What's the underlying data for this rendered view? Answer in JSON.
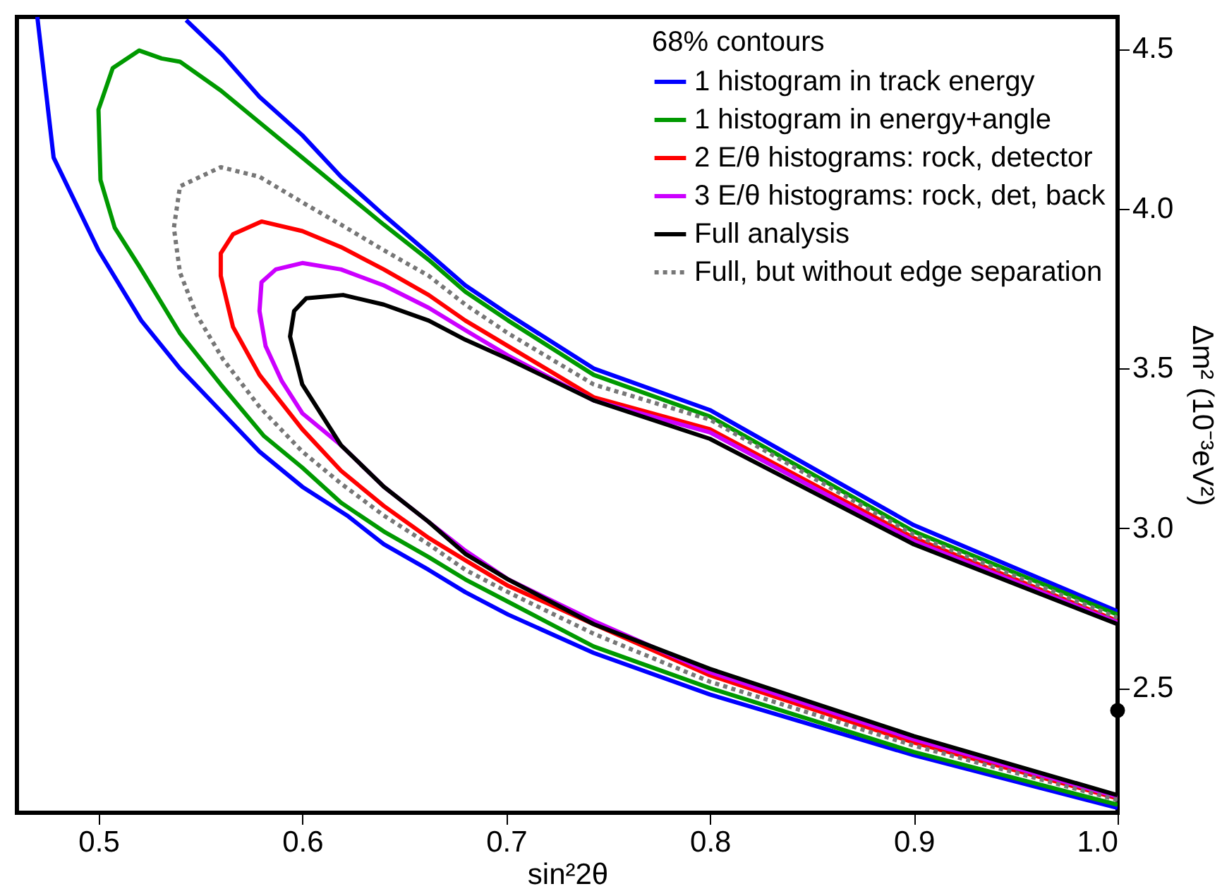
{
  "chart_data": {
    "type": "line",
    "xlabel": "sin²2θ",
    "ylabel": "Δm² (10⁻³eV²)",
    "legend_title": "68% contours",
    "legend": "top right",
    "xlim": [
      0.46,
      1.0
    ],
    "ylim": [
      2.11,
      4.6
    ],
    "xticks": [
      0.5,
      0.6,
      0.7,
      0.8,
      0.9,
      {
        "value": 1,
        "label": "1.0"
      }
    ],
    "yticks": [
      2.5,
      {
        "value": 3,
        "label": "3.0"
      },
      3.5,
      {
        "value": 4,
        "label": "4.0"
      },
      4.5
    ],
    "series": [
      {
        "name": "1 histogram in track energy",
        "color": "#0000ff",
        "line_style": "solid",
        "x": [
          1.0,
          0.9,
          0.8,
          0.743,
          0.701,
          0.68,
          0.662,
          0.64,
          0.622,
          0.6,
          0.579,
          0.561,
          0.54,
          0.521,
          0.5,
          0.478,
          0.47,
          null,
          0.543,
          0.561,
          0.579,
          0.6,
          0.619,
          0.64,
          0.662,
          0.68,
          0.701,
          0.743,
          0.8,
          0.9,
          1.0
        ],
        "values": [
          2.125,
          2.29,
          2.48,
          2.61,
          2.73,
          2.8,
          2.87,
          2.95,
          3.04,
          3.13,
          3.24,
          3.36,
          3.5,
          3.65,
          3.87,
          4.16,
          4.6,
          null,
          4.59,
          4.48,
          4.35,
          4.23,
          4.1,
          3.98,
          3.86,
          3.76,
          3.67,
          3.5,
          3.37,
          3.01,
          2.74
        ]
      },
      {
        "name": "1 histogram in energy+angle",
        "color": "#009900",
        "line_style": "solid",
        "x": [
          1.0,
          0.9,
          0.8,
          0.743,
          0.701,
          0.68,
          0.662,
          0.64,
          0.619,
          0.6,
          0.581,
          0.56,
          0.54,
          0.52,
          0.508,
          0.501,
          0.5,
          0.507,
          0.52,
          0.531,
          0.54,
          0.56,
          0.579,
          0.6,
          0.619,
          0.64,
          0.662,
          0.68,
          0.701,
          0.743,
          0.8,
          0.9,
          1.0
        ],
        "values": [
          2.135,
          2.3,
          2.5,
          2.63,
          2.77,
          2.84,
          2.91,
          2.99,
          3.08,
          3.19,
          3.29,
          3.45,
          3.61,
          3.82,
          3.94,
          4.09,
          4.31,
          4.44,
          4.495,
          4.47,
          4.46,
          4.37,
          4.27,
          4.16,
          4.06,
          3.95,
          3.84,
          3.74,
          3.65,
          3.48,
          3.35,
          2.99,
          2.73
        ]
      },
      {
        "name": "2 E/θ histograms: rock, detector",
        "color": "#ff0000",
        "line_style": "solid",
        "x": [
          1.0,
          0.9,
          0.8,
          0.743,
          0.701,
          0.68,
          0.662,
          0.64,
          0.619,
          0.6,
          0.579,
          0.566,
          0.56,
          0.56,
          0.566,
          0.58,
          0.6,
          0.619,
          0.64,
          0.662,
          0.68,
          0.701,
          0.743,
          0.8,
          0.9,
          1.0
        ],
        "values": [
          2.155,
          2.33,
          2.54,
          2.7,
          2.82,
          2.9,
          2.97,
          3.07,
          3.18,
          3.31,
          3.48,
          3.63,
          3.79,
          3.86,
          3.92,
          3.96,
          3.93,
          3.88,
          3.81,
          3.73,
          3.65,
          3.57,
          3.41,
          3.31,
          2.97,
          2.71
        ]
      },
      {
        "name": "3 E/θ histograms: rock, det, back",
        "color": "#cc00ff",
        "line_style": "solid",
        "x": [
          1.0,
          0.9,
          0.8,
          0.743,
          0.701,
          0.68,
          0.662,
          0.64,
          0.619,
          0.6,
          0.59,
          0.582,
          0.579,
          0.58,
          0.587,
          0.6,
          0.619,
          0.64,
          0.662,
          0.68,
          0.701,
          0.743,
          0.8,
          0.9,
          1.0
        ],
        "values": [
          2.16,
          2.34,
          2.55,
          2.71,
          2.84,
          2.93,
          3.02,
          3.13,
          3.26,
          3.36,
          3.46,
          3.57,
          3.68,
          3.77,
          3.81,
          3.83,
          3.81,
          3.76,
          3.69,
          3.62,
          3.54,
          3.4,
          3.3,
          2.96,
          2.705
        ]
      },
      {
        "name": "Full analysis",
        "color": "#000000",
        "line_style": "solid",
        "x": [
          1.0,
          0.9,
          0.8,
          0.743,
          0.701,
          0.68,
          0.662,
          0.64,
          0.619,
          0.6,
          0.594,
          0.596,
          0.602,
          0.62,
          0.64,
          0.662,
          0.68,
          0.701,
          0.743,
          0.8,
          0.9,
          1.0
        ],
        "values": [
          2.165,
          2.35,
          2.56,
          2.7,
          2.84,
          2.92,
          3.02,
          3.13,
          3.26,
          3.45,
          3.6,
          3.68,
          3.72,
          3.73,
          3.7,
          3.65,
          3.59,
          3.53,
          3.4,
          3.28,
          2.95,
          2.7
        ]
      },
      {
        "name": "Full, but without edge separation",
        "color": "#777777",
        "line_style": "dotted",
        "x": [
          1.0,
          0.9,
          0.8,
          0.743,
          0.701,
          0.68,
          0.662,
          0.64,
          0.619,
          0.6,
          0.579,
          0.561,
          0.548,
          0.54,
          0.537,
          0.54,
          0.56,
          0.579,
          0.6,
          0.619,
          0.64,
          0.662,
          0.68,
          0.701,
          0.743,
          0.8,
          0.9,
          1.0
        ],
        "values": [
          2.15,
          2.32,
          2.52,
          2.67,
          2.8,
          2.87,
          2.95,
          3.04,
          3.14,
          3.24,
          3.38,
          3.53,
          3.67,
          3.8,
          3.94,
          4.07,
          4.13,
          4.1,
          4.02,
          3.95,
          3.87,
          3.79,
          3.7,
          3.61,
          3.45,
          3.34,
          2.98,
          2.72
        ]
      },
      {
        "type": "scatter",
        "color": "#000000",
        "marker": "circle",
        "x": [
          1.0
        ],
        "values": [
          2.43
        ]
      }
    ]
  }
}
